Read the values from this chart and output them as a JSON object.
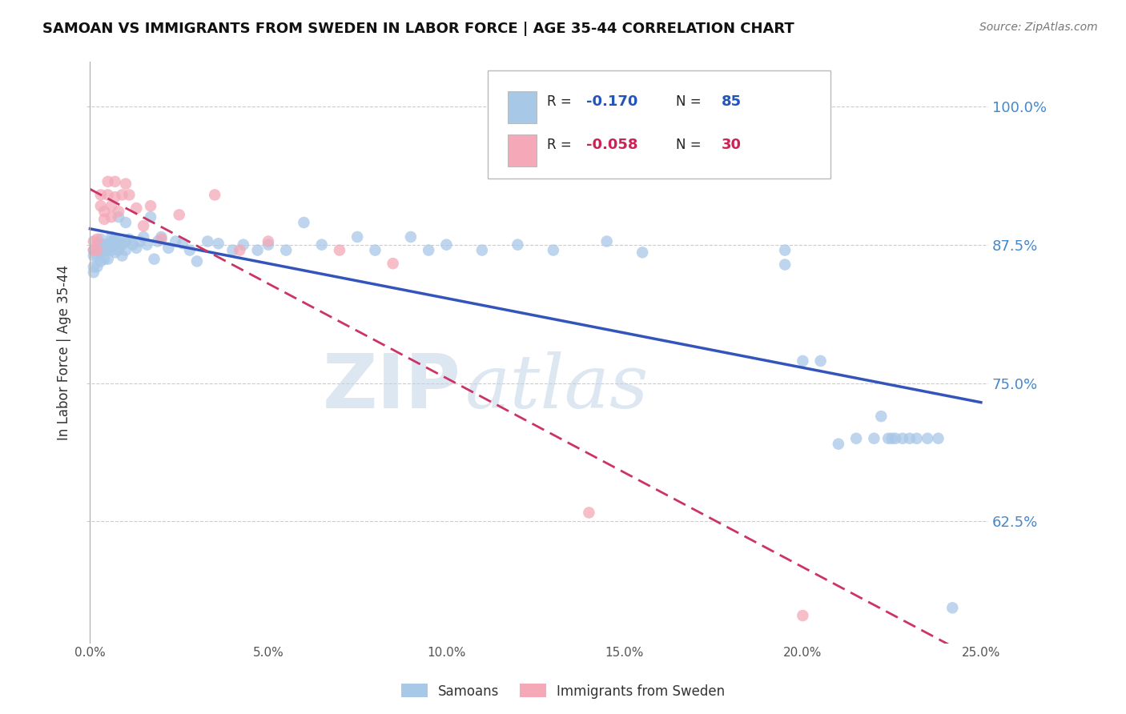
{
  "title": "SAMOAN VS IMMIGRANTS FROM SWEDEN IN LABOR FORCE | AGE 35-44 CORRELATION CHART",
  "source": "Source: ZipAtlas.com",
  "ylabel": "In Labor Force | Age 35-44",
  "xlim": [
    -0.001,
    0.252
  ],
  "ylim": [
    0.515,
    1.04
  ],
  "yticks": [
    0.625,
    0.75,
    0.875,
    1.0
  ],
  "ytick_labels": [
    "62.5%",
    "75.0%",
    "87.5%",
    "100.0%"
  ],
  "xticks": [
    0.0,
    0.05,
    0.1,
    0.15,
    0.2,
    0.25
  ],
  "xtick_labels": [
    "0.0%",
    "5.0%",
    "10.0%",
    "15.0%",
    "20.0%",
    "25.0%"
  ],
  "legend_blue_r_val": "-0.170",
  "legend_blue_n_val": "85",
  "legend_pink_r_val": "-0.058",
  "legend_pink_n_val": "30",
  "legend_label_blue": "Samoans",
  "legend_label_pink": "Immigrants from Sweden",
  "blue_color": "#A8C8E8",
  "pink_color": "#F4A8B8",
  "trend_blue": "#3355BB",
  "trend_pink": "#CC3366",
  "watermark_zip": "ZIP",
  "watermark_atlas": "atlas",
  "blue_x": [
    0.001,
    0.001,
    0.001,
    0.001,
    0.002,
    0.002,
    0.002,
    0.002,
    0.003,
    0.003,
    0.003,
    0.003,
    0.004,
    0.004,
    0.004,
    0.005,
    0.005,
    0.005,
    0.006,
    0.006,
    0.006,
    0.007,
    0.007,
    0.007,
    0.008,
    0.008,
    0.008,
    0.009,
    0.009,
    0.01,
    0.01,
    0.01,
    0.011,
    0.012,
    0.013,
    0.014,
    0.015,
    0.016,
    0.017,
    0.018,
    0.019,
    0.02,
    0.022,
    0.024,
    0.026,
    0.028,
    0.03,
    0.033,
    0.036,
    0.04,
    0.043,
    0.047,
    0.05,
    0.055,
    0.06,
    0.065,
    0.075,
    0.08,
    0.09,
    0.095,
    0.1,
    0.11,
    0.12,
    0.13,
    0.145,
    0.155,
    0.175,
    0.185,
    0.195,
    0.195,
    0.2,
    0.205,
    0.21,
    0.215,
    0.22,
    0.222,
    0.224,
    0.225,
    0.226,
    0.228,
    0.23,
    0.232,
    0.235,
    0.238,
    0.242
  ],
  "blue_y": [
    0.87,
    0.865,
    0.855,
    0.85,
    0.875,
    0.87,
    0.865,
    0.855,
    0.88,
    0.875,
    0.87,
    0.86,
    0.875,
    0.87,
    0.862,
    0.875,
    0.87,
    0.862,
    0.882,
    0.878,
    0.87,
    0.88,
    0.875,
    0.868,
    0.9,
    0.878,
    0.87,
    0.875,
    0.865,
    0.895,
    0.878,
    0.87,
    0.88,
    0.875,
    0.872,
    0.878,
    0.882,
    0.875,
    0.9,
    0.862,
    0.878,
    0.882,
    0.872,
    0.878,
    0.876,
    0.87,
    0.86,
    0.878,
    0.876,
    0.87,
    0.875,
    0.87,
    0.875,
    0.87,
    0.895,
    0.875,
    0.882,
    0.87,
    0.882,
    0.87,
    0.875,
    0.87,
    0.875,
    0.87,
    0.878,
    0.868,
    0.95,
    0.952,
    0.857,
    0.87,
    0.77,
    0.77,
    0.695,
    0.7,
    0.7,
    0.72,
    0.7,
    0.7,
    0.7,
    0.7,
    0.7,
    0.7,
    0.7,
    0.7,
    0.547
  ],
  "pink_x": [
    0.001,
    0.001,
    0.002,
    0.002,
    0.003,
    0.003,
    0.004,
    0.004,
    0.005,
    0.005,
    0.006,
    0.006,
    0.007,
    0.007,
    0.008,
    0.009,
    0.01,
    0.011,
    0.013,
    0.015,
    0.017,
    0.02,
    0.025,
    0.035,
    0.042,
    0.05,
    0.07,
    0.085,
    0.14,
    0.2
  ],
  "pink_y": [
    0.878,
    0.87,
    0.88,
    0.87,
    0.92,
    0.91,
    0.905,
    0.898,
    0.932,
    0.92,
    0.91,
    0.9,
    0.932,
    0.918,
    0.905,
    0.92,
    0.93,
    0.92,
    0.908,
    0.892,
    0.91,
    0.88,
    0.902,
    0.92,
    0.87,
    0.878,
    0.87,
    0.858,
    0.633,
    0.54
  ]
}
